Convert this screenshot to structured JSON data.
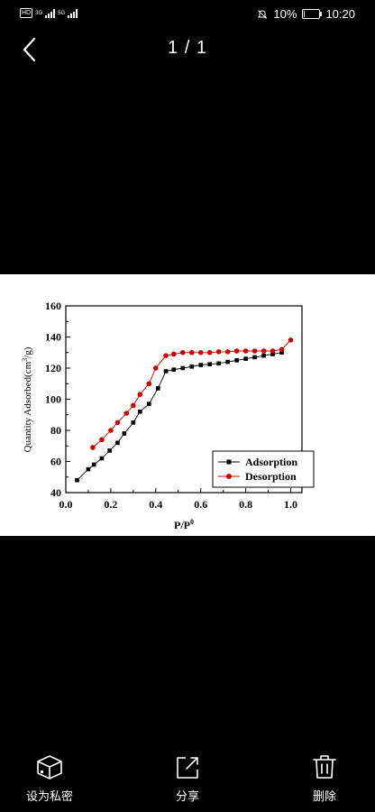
{
  "status_bar": {
    "hd_label": "HD",
    "network_a": "3G",
    "network_b": "5G",
    "battery_text": "10%",
    "time": "10:20",
    "battery_level": 0.1
  },
  "viewer": {
    "page_counter": "1 / 1"
  },
  "actions": [
    {
      "label": "设为私密",
      "icon": "private-box-icon"
    },
    {
      "label": "分享",
      "icon": "share-icon"
    },
    {
      "label": "删除",
      "icon": "trash-icon"
    }
  ],
  "chart_data": {
    "type": "line",
    "title": "",
    "xlabel": "P/P",
    "xlabel_sup": "0",
    "ylabel": "Quantity Adsorbed(cm",
    "ylabel_sup": "3",
    "ylabel_tail": "/g)",
    "xlim": [
      0.0,
      1.05
    ],
    "ylim": [
      40,
      160
    ],
    "xticks": [
      0.0,
      0.2,
      0.4,
      0.6,
      0.8,
      1.0
    ],
    "xtick_labels": [
      "0.0",
      "0.2",
      "0.4",
      "0.6",
      "0.8",
      "1.0"
    ],
    "yticks": [
      40,
      60,
      80,
      100,
      120,
      140,
      160
    ],
    "ytick_labels": [
      "40",
      "60",
      "80",
      "100",
      "120",
      "140",
      "160"
    ],
    "legend_position": "bottom-right",
    "series": [
      {
        "name": "Adsorption",
        "color": "#000000",
        "marker": "square",
        "x": [
          0.05,
          0.1,
          0.125,
          0.16,
          0.195,
          0.23,
          0.26,
          0.3,
          0.33,
          0.37,
          0.41,
          0.445,
          0.48,
          0.52,
          0.56,
          0.6,
          0.64,
          0.68,
          0.72,
          0.76,
          0.8,
          0.84,
          0.88,
          0.92,
          0.96
        ],
        "y": [
          48,
          55,
          58,
          62,
          67,
          72,
          78,
          85,
          92,
          97,
          107,
          118,
          119,
          120,
          121,
          122,
          122.5,
          123,
          124,
          125,
          126,
          127,
          128,
          129,
          130
        ]
      },
      {
        "name": "Desorption",
        "color": "#cc0000",
        "marker": "circle",
        "x": [
          0.12,
          0.16,
          0.2,
          0.23,
          0.27,
          0.3,
          0.33,
          0.37,
          0.4,
          0.445,
          0.48,
          0.52,
          0.56,
          0.6,
          0.64,
          0.68,
          0.72,
          0.76,
          0.8,
          0.84,
          0.88,
          0.92,
          0.96,
          1.0
        ],
        "y": [
          69,
          74,
          80,
          85,
          91,
          96,
          103,
          110,
          120,
          128,
          129,
          130,
          130,
          130,
          130,
          130.5,
          130.5,
          131,
          131,
          131,
          131,
          131,
          132,
          138
        ]
      }
    ]
  }
}
